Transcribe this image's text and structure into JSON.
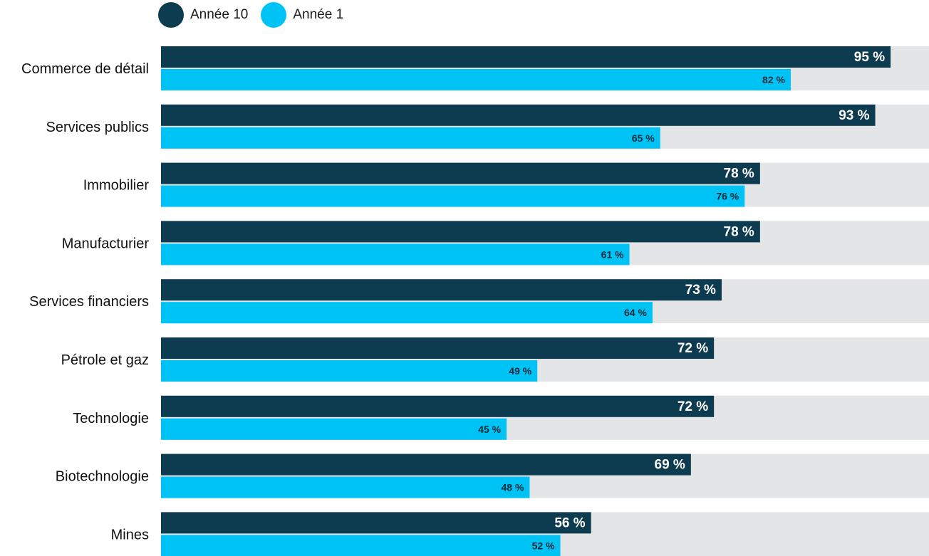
{
  "chart_data": {
    "type": "bar",
    "orientation": "horizontal",
    "categories": [
      "Commerce de détail",
      "Services publics",
      "Immobilier",
      "Manufacturier",
      "Services financiers",
      "Pétrole et gaz",
      "Technologie",
      "Biotechnologie",
      "Mines"
    ],
    "series": [
      {
        "name": "Année 10",
        "values": [
          95,
          93,
          78,
          78,
          73,
          72,
          72,
          69,
          56
        ],
        "color": "#0d3b4f",
        "labels": [
          "95 %",
          "93 %",
          "78 %",
          "78 %",
          "73 %",
          "72 %",
          "72 %",
          "69 %",
          "56 %"
        ]
      },
      {
        "name": "Année 1",
        "values": [
          82,
          65,
          76,
          61,
          64,
          49,
          45,
          48,
          52
        ],
        "color": "#00c3f5",
        "labels": [
          "82 %",
          "65 %",
          "76 %",
          "61 %",
          "64 %",
          "49 %",
          "45 %",
          "48 %",
          "52 %"
        ]
      }
    ],
    "xlim": [
      0,
      100
    ],
    "background_track_color": "#e4e5e7",
    "legend": "top-left",
    "grid": false,
    "title": "",
    "xlabel": "",
    "ylabel": ""
  }
}
